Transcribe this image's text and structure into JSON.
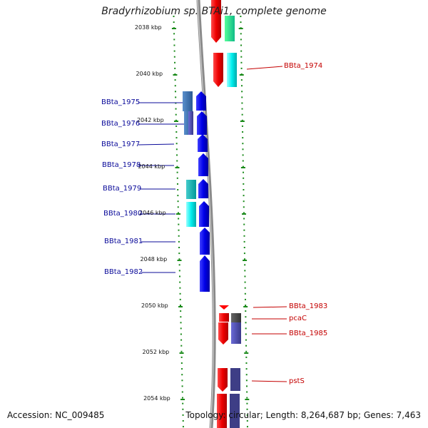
{
  "title": "Bradyrhizobium sp. BTAi1, complete genome",
  "accession": "Accession: NC_009485",
  "topology": "Topology: circular; Length: 8,264,687 bp; Genes: 7,463",
  "scale": {
    "ticks": [
      {
        "kbp": 2038,
        "label": "2038 kbp"
      },
      {
        "kbp": 2040,
        "label": "2040 kbp"
      },
      {
        "kbp": 2042,
        "label": "2042 kbp"
      },
      {
        "kbp": 2044,
        "label": "2044 kbp"
      },
      {
        "kbp": 2046,
        "label": "2046 kbp"
      },
      {
        "kbp": 2048,
        "label": "2048 kbp"
      },
      {
        "kbp": 2050,
        "label": "2050 kbp"
      },
      {
        "kbp": 2052,
        "label": "2052 kbp"
      },
      {
        "kbp": 2054,
        "label": "2054 kbp"
      }
    ]
  },
  "left_labels": [
    {
      "id": "BBta_1975",
      "text": "BBta_1975"
    },
    {
      "id": "BBta_1976",
      "text": "BBta_1976"
    },
    {
      "id": "BBta_1977",
      "text": "BBta_1977"
    },
    {
      "id": "BBta_1978",
      "text": "BBta_1978"
    },
    {
      "id": "BBta_1979",
      "text": "BBta_1979"
    },
    {
      "id": "BBta_1980",
      "text": "BBta_1980"
    },
    {
      "id": "BBta_1981",
      "text": "BBta_1981"
    },
    {
      "id": "BBta_1982",
      "text": "BBta_1982"
    }
  ],
  "right_labels": [
    {
      "id": "BBta_1974",
      "text": "BBta_1974"
    },
    {
      "id": "BBta_1983",
      "text": "BBta_1983"
    },
    {
      "id": "pcaC",
      "text": "pcaC"
    },
    {
      "id": "BBta_1985",
      "text": "BBta_1985"
    },
    {
      "id": "pstS",
      "text": "pstS"
    }
  ],
  "colors": {
    "tick": "#1a8a1a",
    "backbone": "#8a8a8a",
    "left_label": "#0b0b9a",
    "right_label": "#c40000",
    "reverse_gene": "#ff0000",
    "forward_gene": "#0000ff"
  }
}
